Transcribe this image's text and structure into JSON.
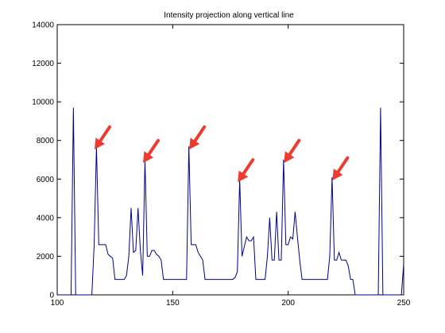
{
  "chart_data": {
    "type": "line",
    "title": "Intensity projection along vertical line",
    "xlabel": "",
    "ylabel": "",
    "xlim": [
      100,
      250
    ],
    "ylim": [
      0,
      14000
    ],
    "x_ticks": [
      100,
      150,
      200,
      250
    ],
    "y_ticks": [
      0,
      2000,
      4000,
      6000,
      8000,
      10000,
      12000,
      14000
    ],
    "grid": false,
    "legend": "none",
    "line_color": "#00008b",
    "arrow_color": "#ee3b2f",
    "series": [
      {
        "x": [
          100,
          106,
          107,
          108,
          109,
          115,
          116,
          117,
          118,
          120,
          121,
          122,
          123,
          124,
          125,
          126,
          127,
          128,
          129,
          130,
          131,
          132,
          133,
          134,
          135,
          136,
          137,
          138,
          139,
          140,
          141,
          142,
          143,
          144,
          145,
          146,
          147,
          150,
          155,
          156,
          157,
          158,
          159,
          160,
          161,
          162,
          163,
          164,
          165,
          166,
          175,
          176,
          177,
          178,
          179,
          180,
          181,
          182,
          183,
          184,
          185,
          186,
          190,
          191,
          192,
          193,
          194,
          195,
          196,
          197,
          198,
          199,
          200,
          201,
          202,
          203,
          204,
          205,
          206,
          207,
          215,
          216,
          217,
          218,
          219,
          220,
          221,
          222,
          223,
          224,
          225,
          226,
          227,
          228,
          229,
          230,
          231,
          232,
          238,
          239,
          240,
          241,
          242,
          248,
          249,
          250
        ],
        "y": [
          0,
          0,
          9700,
          0,
          0,
          0,
          2600,
          7700,
          2600,
          2600,
          2600,
          2100,
          2000,
          1900,
          800,
          800,
          800,
          800,
          800,
          1000,
          2000,
          4500,
          2200,
          2300,
          4500,
          2300,
          1000,
          7000,
          2000,
          2000,
          2300,
          2300,
          2100,
          2000,
          1800,
          800,
          800,
          800,
          800,
          800,
          7700,
          2600,
          2600,
          2600,
          2200,
          2000,
          1800,
          800,
          800,
          800,
          800,
          800,
          900,
          1200,
          6000,
          2000,
          2500,
          3000,
          2800,
          2800,
          3000,
          800,
          800,
          2000,
          4000,
          1800,
          1800,
          4300,
          1800,
          1800,
          7000,
          2600,
          2600,
          3000,
          2900,
          4300,
          3000,
          1800,
          800,
          800,
          800,
          800,
          800,
          2000,
          6100,
          1800,
          1800,
          2200,
          1800,
          1800,
          1800,
          1500,
          800,
          800,
          0,
          0,
          0,
          0,
          0,
          0,
          9700,
          0,
          0,
          0,
          0,
          1600
        ]
      }
    ],
    "annotations": [
      {
        "type": "arrow",
        "x": 116.5,
        "y": 7700
      },
      {
        "type": "arrow",
        "x": 137.5,
        "y": 7000
      },
      {
        "type": "arrow",
        "x": 157.5,
        "y": 7700
      },
      {
        "type": "arrow",
        "x": 178.5,
        "y": 6000
      },
      {
        "type": "arrow",
        "x": 198.5,
        "y": 7000
      },
      {
        "type": "arrow",
        "x": 219.5,
        "y": 6100
      }
    ]
  }
}
